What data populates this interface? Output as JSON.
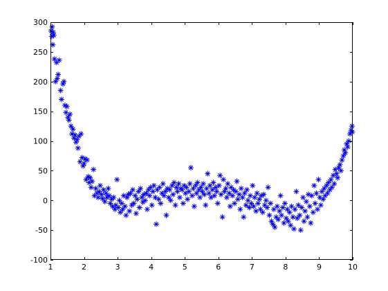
{
  "chart_data": {
    "type": "scatter",
    "title": "",
    "xlabel": "",
    "ylabel": "",
    "xlim": [
      1,
      10
    ],
    "ylim": [
      -100,
      300
    ],
    "xticks": [
      1,
      2,
      3,
      4,
      5,
      6,
      7,
      8,
      9,
      10
    ],
    "yticks": [
      -100,
      -50,
      0,
      50,
      100,
      150,
      200,
      250,
      300
    ],
    "xtick_labels": [
      "1",
      "2",
      "3",
      "4",
      "5",
      "6",
      "7",
      "8",
      "9",
      "10"
    ],
    "ytick_labels": [
      "-100",
      "-50",
      "0",
      "50",
      "100",
      "150",
      "200",
      "250",
      "300"
    ],
    "grid": false,
    "marker": "asterisk",
    "color": "#0000ff",
    "series": [
      {
        "points": [
          [
            1.02,
            285
          ],
          [
            1.04,
            276
          ],
          [
            1.05,
            292
          ],
          [
            1.07,
            262
          ],
          [
            1.08,
            283
          ],
          [
            1.1,
            278
          ],
          [
            1.12,
            238
          ],
          [
            1.15,
            200
          ],
          [
            1.18,
            232
          ],
          [
            1.2,
            205
          ],
          [
            1.23,
            212
          ],
          [
            1.26,
            236
          ],
          [
            1.3,
            185
          ],
          [
            1.33,
            170
          ],
          [
            1.37,
            196
          ],
          [
            1.4,
            200
          ],
          [
            1.43,
            160
          ],
          [
            1.46,
            148
          ],
          [
            1.49,
            158
          ],
          [
            1.52,
            140
          ],
          [
            1.55,
            135
          ],
          [
            1.58,
            145
          ],
          [
            1.61,
            125
          ],
          [
            1.64,
            112
          ],
          [
            1.67,
            120
          ],
          [
            1.7,
            105
          ],
          [
            1.73,
            110
          ],
          [
            1.76,
            98
          ],
          [
            1.79,
            102
          ],
          [
            1.82,
            88
          ],
          [
            1.85,
            108
          ],
          [
            1.88,
            65
          ],
          [
            1.91,
            112
          ],
          [
            1.94,
            72
          ],
          [
            1.97,
            58
          ],
          [
            2.0,
            62
          ],
          [
            2.03,
            70
          ],
          [
            2.06,
            35
          ],
          [
            2.09,
            68
          ],
          [
            2.12,
            40
          ],
          [
            2.15,
            30
          ],
          [
            2.18,
            38
          ],
          [
            2.21,
            22
          ],
          [
            2.24,
            32
          ],
          [
            2.28,
            52
          ],
          [
            2.31,
            8
          ],
          [
            2.35,
            20
          ],
          [
            2.38,
            12
          ],
          [
            2.42,
            5
          ],
          [
            2.45,
            15
          ],
          [
            2.48,
            25
          ],
          [
            2.52,
            10
          ],
          [
            2.55,
            3
          ],
          [
            2.58,
            18
          ],
          [
            2.62,
            -2
          ],
          [
            2.65,
            12
          ],
          [
            2.68,
            5
          ],
          [
            2.72,
            20
          ],
          [
            2.75,
            8
          ],
          [
            2.78,
            -5
          ],
          [
            2.82,
            2
          ],
          [
            2.85,
            -10
          ],
          [
            2.88,
            5
          ],
          [
            2.92,
            -15
          ],
          [
            2.95,
            -8
          ],
          [
            2.98,
            35
          ],
          [
            3.02,
            -12
          ],
          [
            3.05,
            0
          ],
          [
            3.08,
            -20
          ],
          [
            3.12,
            -5
          ],
          [
            3.15,
            -15
          ],
          [
            3.18,
            8
          ],
          [
            3.22,
            -10
          ],
          [
            3.25,
            -25
          ],
          [
            3.28,
            5
          ],
          [
            3.32,
            10
          ],
          [
            3.35,
            -18
          ],
          [
            3.38,
            12
          ],
          [
            3.42,
            -8
          ],
          [
            3.45,
            18
          ],
          [
            3.48,
            -5
          ],
          [
            3.52,
            8
          ],
          [
            3.55,
            -22
          ],
          [
            3.58,
            2
          ],
          [
            3.62,
            15
          ],
          [
            3.65,
            -12
          ],
          [
            3.68,
            20
          ],
          [
            3.72,
            5
          ],
          [
            3.75,
            -3
          ],
          [
            3.78,
            10
          ],
          [
            3.82,
            0
          ],
          [
            3.85,
            12
          ],
          [
            3.88,
            -15
          ],
          [
            3.92,
            18
          ],
          [
            3.95,
            8
          ],
          [
            3.98,
            22
          ],
          [
            4.02,
            -8
          ],
          [
            4.05,
            15
          ],
          [
            4.08,
            25
          ],
          [
            4.12,
            5
          ],
          [
            4.15,
            -40
          ],
          [
            4.18,
            18
          ],
          [
            4.22,
            2
          ],
          [
            4.25,
            22
          ],
          [
            4.28,
            -5
          ],
          [
            4.32,
            12
          ],
          [
            4.35,
            28
          ],
          [
            4.38,
            8
          ],
          [
            4.42,
            15
          ],
          [
            4.45,
            -25
          ],
          [
            4.48,
            20
          ],
          [
            4.52,
            5
          ],
          [
            4.55,
            18
          ],
          [
            4.58,
            0
          ],
          [
            4.62,
            25
          ],
          [
            4.65,
            10
          ],
          [
            4.68,
            30
          ],
          [
            4.72,
            -8
          ],
          [
            4.75,
            22
          ],
          [
            4.78,
            15
          ],
          [
            4.82,
            28
          ],
          [
            4.85,
            5
          ],
          [
            4.88,
            20
          ],
          [
            4.92,
            18
          ],
          [
            4.95,
            -5
          ],
          [
            4.98,
            25
          ],
          [
            5.02,
            12
          ],
          [
            5.05,
            22
          ],
          [
            5.08,
            2
          ],
          [
            5.12,
            15
          ],
          [
            5.15,
            28
          ],
          [
            5.18,
            55
          ],
          [
            5.22,
            8
          ],
          [
            5.25,
            20
          ],
          [
            5.28,
            -10
          ],
          [
            5.32,
            25
          ],
          [
            5.35,
            12
          ],
          [
            5.38,
            30
          ],
          [
            5.42,
            18
          ],
          [
            5.45,
            5
          ],
          [
            5.48,
            22
          ],
          [
            5.52,
            15
          ],
          [
            5.55,
            28
          ],
          [
            5.58,
            10
          ],
          [
            5.62,
            -8
          ],
          [
            5.65,
            20
          ],
          [
            5.68,
            45
          ],
          [
            5.72,
            12
          ],
          [
            5.75,
            25
          ],
          [
            5.78,
            5
          ],
          [
            5.82,
            18
          ],
          [
            5.85,
            30
          ],
          [
            5.88,
            8
          ],
          [
            5.92,
            22
          ],
          [
            5.95,
            15
          ],
          [
            5.98,
            -5
          ],
          [
            6.02,
            25
          ],
          [
            6.05,
            42
          ],
          [
            6.08,
            10
          ],
          [
            6.12,
            -28
          ],
          [
            6.15,
            35
          ],
          [
            6.18,
            15
          ],
          [
            6.22,
            20
          ],
          [
            6.25,
            5
          ],
          [
            6.28,
            28
          ],
          [
            6.32,
            12
          ],
          [
            6.35,
            -10
          ],
          [
            6.38,
            22
          ],
          [
            6.42,
            8
          ],
          [
            6.45,
            18
          ],
          [
            6.48,
            -5
          ],
          [
            6.52,
            15
          ],
          [
            6.55,
            32
          ],
          [
            6.58,
            2
          ],
          [
            6.62,
            10
          ],
          [
            6.65,
            -15
          ],
          [
            6.68,
            20
          ],
          [
            6.72,
            5
          ],
          [
            6.75,
            -28
          ],
          [
            6.78,
            12
          ],
          [
            6.82,
            -8
          ],
          [
            6.85,
            18
          ],
          [
            6.88,
            0
          ],
          [
            6.92,
            -12
          ],
          [
            6.95,
            8
          ],
          [
            6.98,
            -5
          ],
          [
            7.02,
            25
          ],
          [
            7.05,
            -10
          ],
          [
            7.08,
            5
          ],
          [
            7.12,
            -18
          ],
          [
            7.15,
            12
          ],
          [
            7.18,
            -5
          ],
          [
            7.22,
            2
          ],
          [
            7.25,
            -15
          ],
          [
            7.28,
            8
          ],
          [
            7.32,
            -20
          ],
          [
            7.35,
            10
          ],
          [
            7.38,
            -8
          ],
          [
            7.42,
            0
          ],
          [
            7.45,
            -12
          ],
          [
            7.48,
            22
          ],
          [
            7.52,
            -25
          ],
          [
            7.55,
            -5
          ],
          [
            7.58,
            -35
          ],
          [
            7.62,
            -40
          ],
          [
            7.65,
            -15
          ],
          [
            7.68,
            -45
          ],
          [
            7.72,
            -28
          ],
          [
            7.75,
            -10
          ],
          [
            7.78,
            -32
          ],
          [
            7.82,
            -18
          ],
          [
            7.85,
            8
          ],
          [
            7.88,
            -25
          ],
          [
            7.92,
            -12
          ],
          [
            7.95,
            -38
          ],
          [
            7.98,
            -5
          ],
          [
            8.02,
            -30
          ],
          [
            8.05,
            -15
          ],
          [
            8.08,
            -35
          ],
          [
            8.12,
            -20
          ],
          [
            8.15,
            -42
          ],
          [
            8.18,
            -10
          ],
          [
            8.22,
            -28
          ],
          [
            8.25,
            -48
          ],
          [
            8.28,
            -15
          ],
          [
            8.32,
            15
          ],
          [
            8.35,
            -30
          ],
          [
            8.38,
            -8
          ],
          [
            8.42,
            -25
          ],
          [
            8.45,
            -50
          ],
          [
            8.48,
            -12
          ],
          [
            8.52,
            5
          ],
          [
            8.55,
            -35
          ],
          [
            8.58,
            -18
          ],
          [
            8.62,
            -2
          ],
          [
            8.65,
            -28
          ],
          [
            8.68,
            10
          ],
          [
            8.72,
            -10
          ],
          [
            8.75,
            -38
          ],
          [
            8.78,
            8
          ],
          [
            8.82,
            -20
          ],
          [
            8.85,
            25
          ],
          [
            8.88,
            -5
          ],
          [
            8.92,
            12
          ],
          [
            8.95,
            -15
          ],
          [
            8.98,
            35
          ],
          [
            9.02,
            5
          ],
          [
            9.05,
            -8
          ],
          [
            9.08,
            15
          ],
          [
            9.12,
            2
          ],
          [
            9.15,
            20
          ],
          [
            9.18,
            8
          ],
          [
            9.22,
            25
          ],
          [
            9.25,
            12
          ],
          [
            9.28,
            30
          ],
          [
            9.32,
            18
          ],
          [
            9.35,
            35
          ],
          [
            9.38,
            22
          ],
          [
            9.42,
            42
          ],
          [
            9.45,
            28
          ],
          [
            9.48,
            52
          ],
          [
            9.52,
            45
          ],
          [
            9.55,
            38
          ],
          [
            9.58,
            55
          ],
          [
            9.62,
            60
          ],
          [
            9.65,
            50
          ],
          [
            9.68,
            68
          ],
          [
            9.72,
            75
          ],
          [
            9.75,
            85
          ],
          [
            9.78,
            80
          ],
          [
            9.82,
            95
          ],
          [
            9.85,
            90
          ],
          [
            9.88,
            100
          ],
          [
            9.92,
            112
          ],
          [
            9.95,
            118
          ],
          [
            9.98,
            125
          ],
          [
            9.99,
            115
          ]
        ]
      }
    ]
  }
}
